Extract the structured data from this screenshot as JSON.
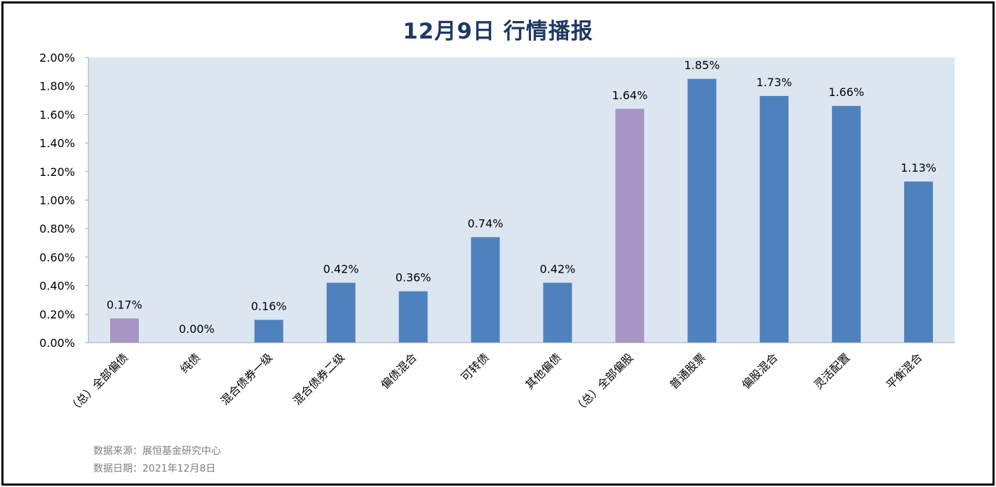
{
  "chart_data": {
    "type": "bar",
    "title": "12月9日  行情播报",
    "categories": [
      "（总）全部偏债",
      "纯债",
      "混合债券一级",
      "混合债券二级",
      "偏债混合",
      "可转债",
      "其他偏债",
      "（总）全部偏股",
      "普通股票",
      "偏股混合",
      "灵活配置",
      "平衡混合"
    ],
    "values": [
      0.17,
      0.0,
      0.16,
      0.42,
      0.36,
      0.74,
      0.42,
      1.64,
      1.85,
      1.73,
      1.66,
      1.13
    ],
    "value_labels": [
      "0.17%",
      "0.00%",
      "0.16%",
      "0.42%",
      "0.36%",
      "0.74%",
      "0.42%",
      "1.64%",
      "1.85%",
      "1.73%",
      "1.66%",
      "1.13%"
    ],
    "bar_colors": [
      "#a796c3",
      "#4f81bd",
      "#4f81bd",
      "#4f81bd",
      "#4f81bd",
      "#4f81bd",
      "#4f81bd",
      "#a796c3",
      "#4f81bd",
      "#4f81bd",
      "#4f81bd",
      "#4f81bd"
    ],
    "ylim": [
      0,
      2.0
    ],
    "yticks": [
      "0.00%",
      "0.20%",
      "0.40%",
      "0.60%",
      "0.80%",
      "1.00%",
      "1.20%",
      "1.40%",
      "1.60%",
      "1.80%",
      "2.00%"
    ],
    "xlabel": "",
    "ylabel": "",
    "grid": false,
    "legend": "none",
    "plot_background": "#dce6f1"
  },
  "notes": {
    "source": "数据来源：展恒基金研究中心",
    "date": "数据日期：2021年12月8日"
  }
}
